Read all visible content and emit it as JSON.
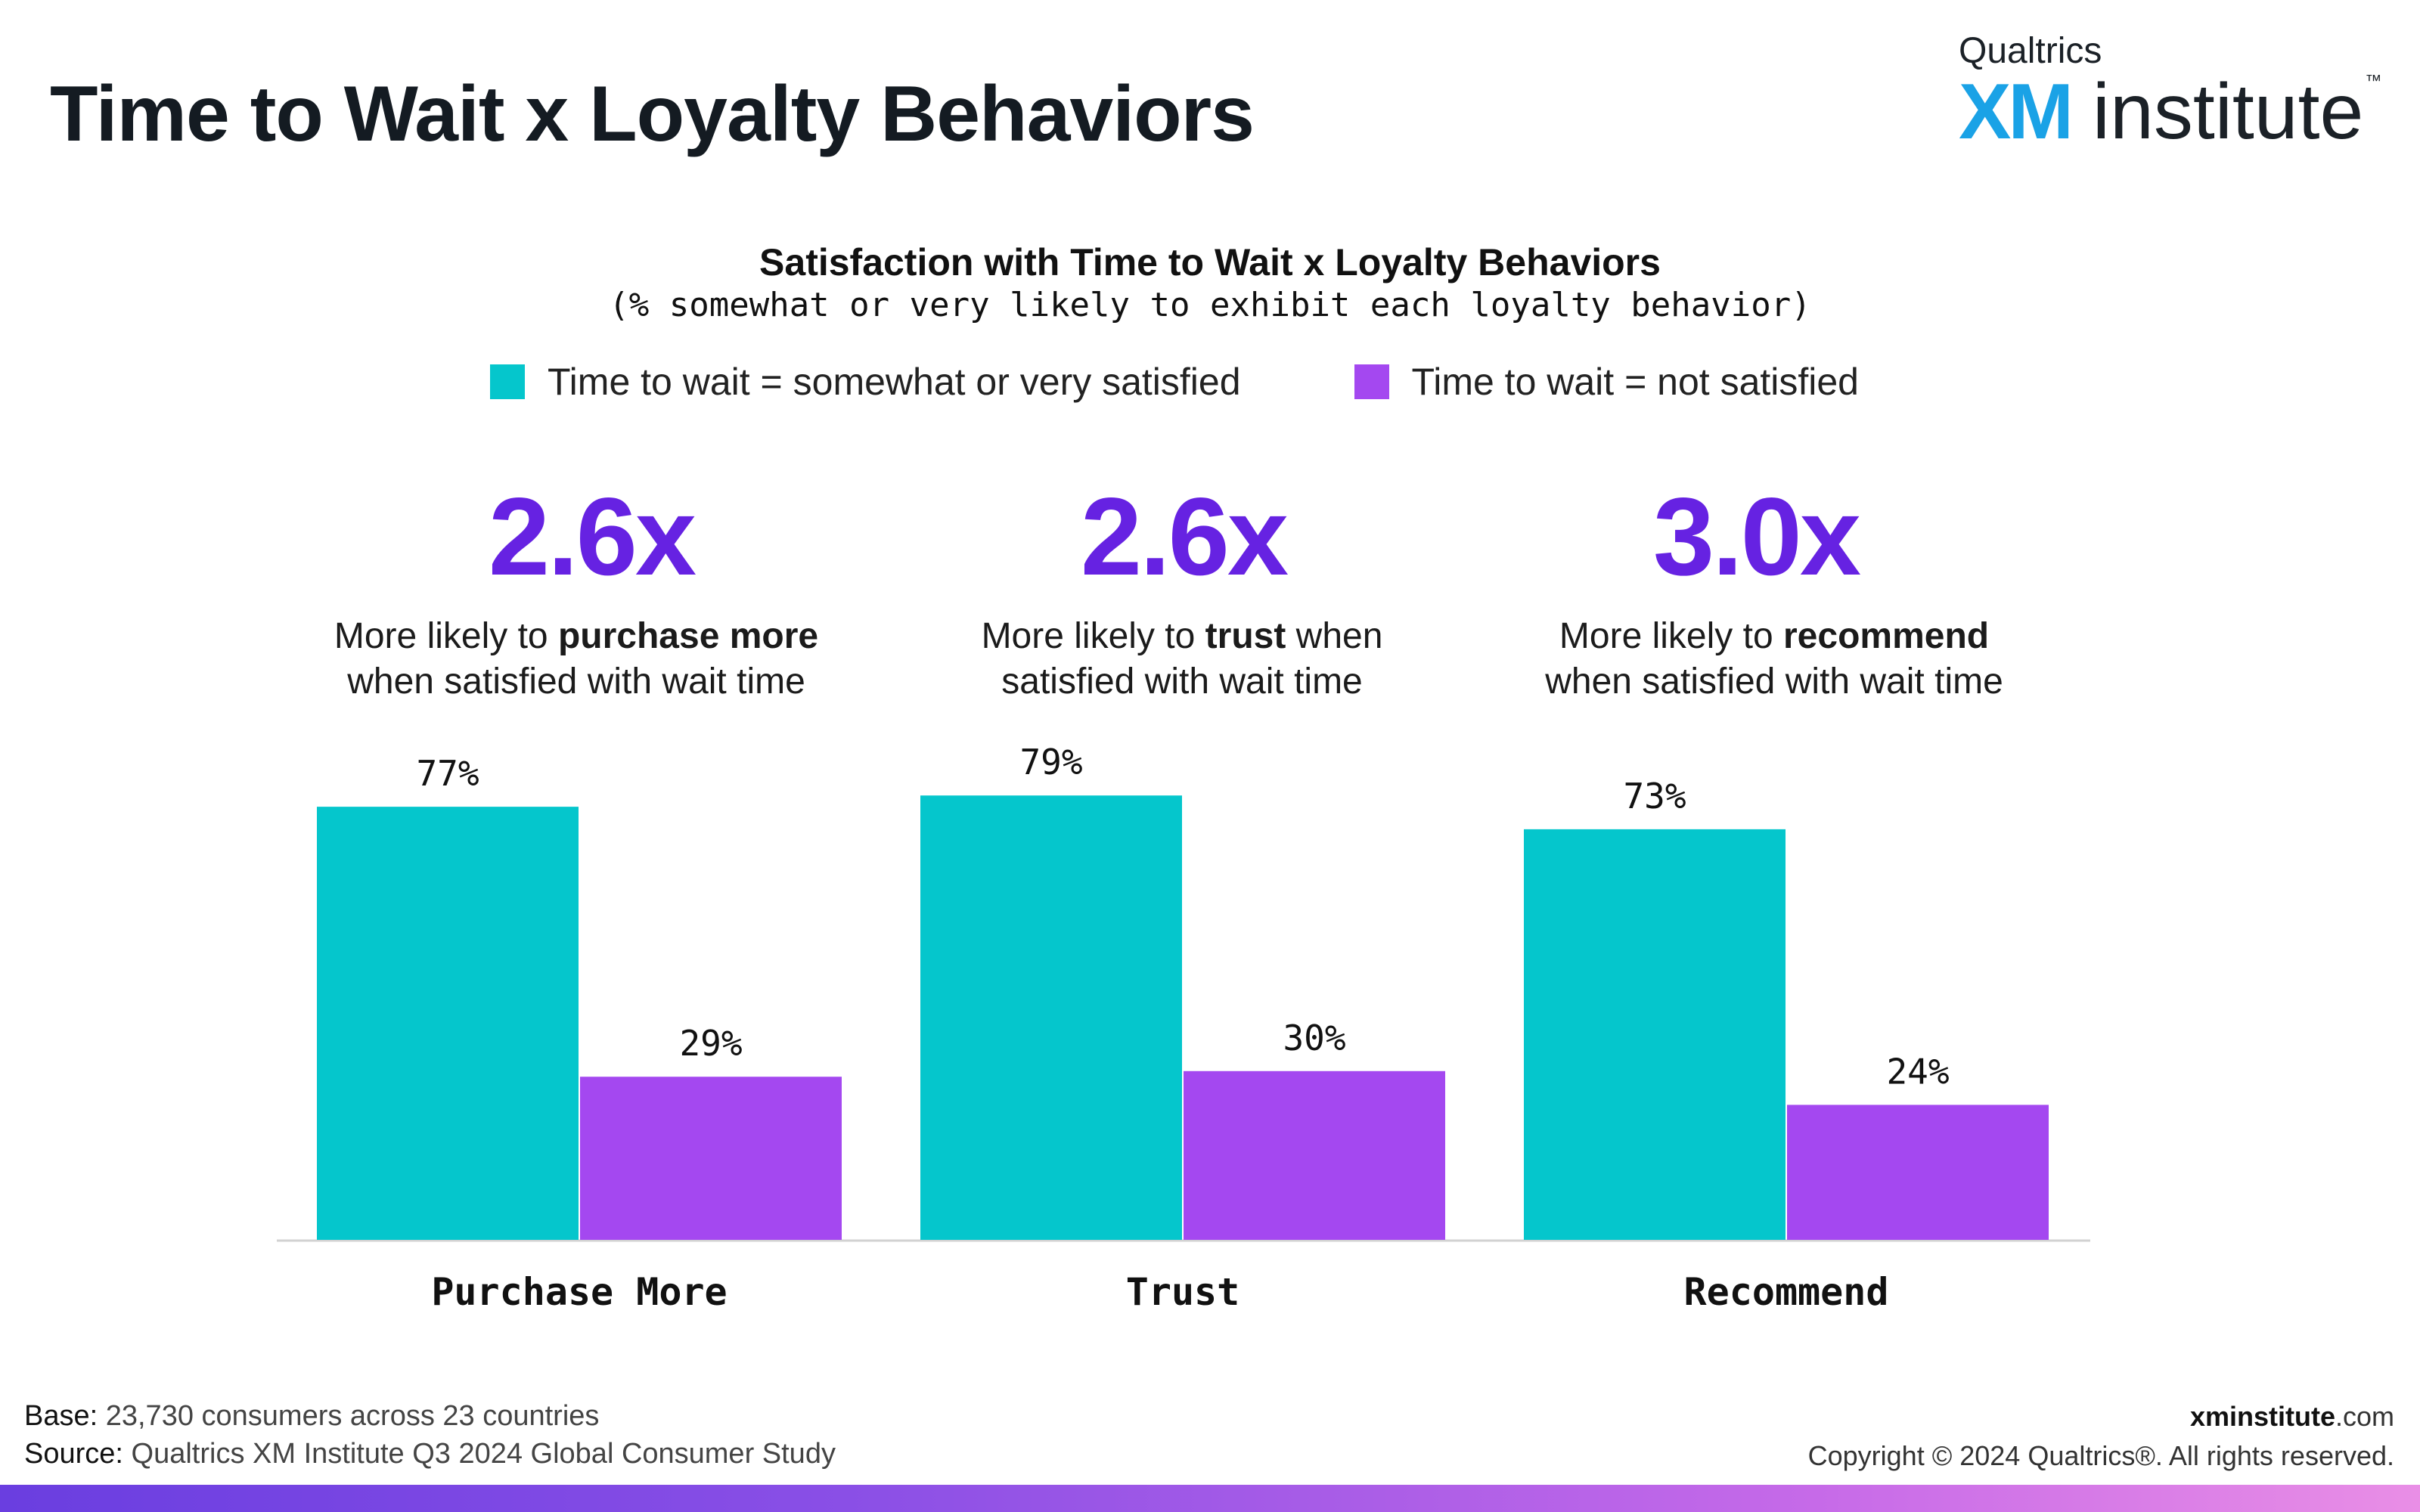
{
  "header": {
    "title": "Time to Wait x Loyalty Behaviors"
  },
  "logo": {
    "top_text": "Qualtrics",
    "xm_text": "XM",
    "institute_text": "institute",
    "tm": "™"
  },
  "chart_data": {
    "type": "bar",
    "title": "Satisfaction with Time to Wait x Loyalty Behaviors",
    "subtitle": "(% somewhat or very likely to exhibit each loyalty behavior)",
    "categories": [
      "Purchase More",
      "Trust",
      "Recommend"
    ],
    "series": [
      {
        "name": "Time to wait = somewhat or very satisfied",
        "values": [
          77,
          79,
          73
        ],
        "color": "#05c6cc"
      },
      {
        "name": "Time to wait = not satisfied",
        "values": [
          29,
          30,
          24
        ],
        "color": "#a448f0"
      }
    ],
    "value_suffix": "%",
    "ylim": [
      0,
      100
    ],
    "grid": false,
    "legend_position": "top",
    "xlabel": "",
    "ylabel": ""
  },
  "callouts": [
    {
      "ratio": "2.6x",
      "line1_pre": "More likely to ",
      "line1_bold": "purchase more",
      "line1_post": "",
      "line2_pre": "when satisfied with wait time"
    },
    {
      "ratio": "2.6x",
      "line1_pre": "More likely to ",
      "line1_bold": "trust",
      "line1_post": " when",
      "line2_pre": "satisfied with wait time"
    },
    {
      "ratio": "3.0x",
      "line1_pre": "More likely to ",
      "line1_bold": "recommend",
      "line1_post": "",
      "line2_pre": "when satisfied with wait time"
    }
  ],
  "footer": {
    "base_label": "Base:",
    "base_text": " 23,730 consumers across 23 countries",
    "source_label": "Source:",
    "source_text": " Qualtrics XM Institute Q3 2024 Global Consumer Study",
    "site_bold": "xminstitute",
    "site_rest": ".com",
    "copyright": "Copyright © 2024 Qualtrics®. All rights reserved."
  },
  "colors": {
    "ratio": "#6622e2",
    "accent_bar_start": "#6a3ee0",
    "accent_bar_end": "#e98ee6"
  }
}
